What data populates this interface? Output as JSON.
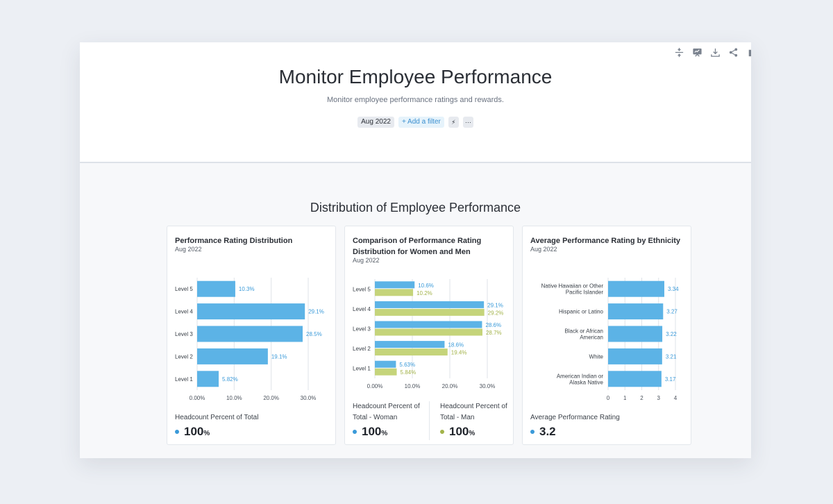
{
  "header": {
    "title": "Monitor Employee Performance",
    "subtitle": "Monitor employee performance ratings and rewards.",
    "filters": {
      "date": "Aug 2022",
      "add_filter": "+ Add a filter",
      "more": "···"
    }
  },
  "section_title": "Distribution of Employee Performance",
  "colors": {
    "blue": "#5cb3e6",
    "green": "#c5d47a",
    "blue_text": "#3a9ad9",
    "green_text": "#a3b34a",
    "grid": "#dfe3e8"
  },
  "chart_data": [
    {
      "type": "bar",
      "orientation": "horizontal",
      "title": "Performance Rating Distribution",
      "subtitle": "Aug 2022",
      "categories": [
        "Level 5",
        "Level 4",
        "Level 3",
        "Level 2",
        "Level 1"
      ],
      "series": [
        {
          "name": "Headcount Percent of Total",
          "values": [
            10.3,
            29.1,
            28.5,
            19.1,
            5.82
          ],
          "labels": [
            "10.3%",
            "29.1%",
            "28.5%",
            "19.1%",
            "5.82%"
          ]
        }
      ],
      "xticks": [
        "0.00%",
        "10.0%",
        "20.0%",
        "30.0%"
      ],
      "xlim": [
        0,
        30
      ],
      "metric": {
        "label": "Headcount Percent of Total",
        "value": "100",
        "unit": "%"
      }
    },
    {
      "type": "bar",
      "orientation": "horizontal",
      "title": "Comparison of Performance Rating Distribution for Women and Men",
      "subtitle": "Aug 2022",
      "categories": [
        "Level 5",
        "Level 4",
        "Level 3",
        "Level 2",
        "Level 1"
      ],
      "series": [
        {
          "name": "Headcount Percent of Total - Woman",
          "values": [
            10.6,
            29.1,
            28.6,
            18.6,
            5.63
          ],
          "labels": [
            "10.6%",
            "29.1%",
            "28.6%",
            "18.6%",
            "5.63%"
          ]
        },
        {
          "name": "Headcount Percent of Total - Man",
          "values": [
            10.2,
            29.2,
            28.7,
            19.4,
            5.84
          ],
          "labels": [
            "10.2%",
            "29.2%",
            "28.7%",
            "19.4%",
            "5.84%"
          ]
        }
      ],
      "xticks": [
        "0.00%",
        "10.0%",
        "20.0%",
        "30.0%"
      ],
      "xlim": [
        0,
        30
      ],
      "metrics": [
        {
          "label": "Headcount Percent of Total - Woman",
          "value": "100",
          "unit": "%"
        },
        {
          "label": "Headcount Percent of Total - Man",
          "value": "100",
          "unit": "%"
        }
      ]
    },
    {
      "type": "bar",
      "orientation": "horizontal",
      "title": "Average Performance Rating by Ethnicity",
      "subtitle": "Aug 2022",
      "categories": [
        "Native Hawaiian or Other Pacific Islander",
        "Hispanic or Latino",
        "Black or African American",
        "White",
        "American Indian or Alaska Native"
      ],
      "series": [
        {
          "name": "Average Performance Rating",
          "values": [
            3.34,
            3.27,
            3.22,
            3.21,
            3.17
          ],
          "labels": [
            "3.34",
            "3.27",
            "3.22",
            "3.21",
            "3.17"
          ]
        }
      ],
      "xticks": [
        "0",
        "1",
        "2",
        "3",
        "4"
      ],
      "xlim": [
        0,
        4
      ],
      "metric": {
        "label": "Average Performance Rating",
        "value": "3.2",
        "unit": ""
      }
    }
  ]
}
